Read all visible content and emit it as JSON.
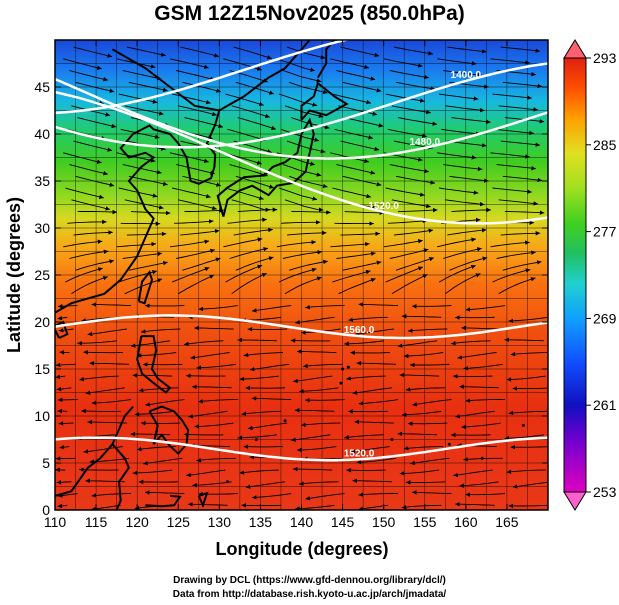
{
  "title": "GSM 12Z15Nov2025 (850.0hPa)",
  "x_axis": {
    "label": "Longitude (degrees)",
    "range": [
      110,
      170
    ],
    "ticks": [
      110,
      115,
      120,
      125,
      130,
      135,
      140,
      145,
      150,
      155,
      160,
      165
    ]
  },
  "y_axis": {
    "label": "Latitude  (degrees)",
    "range": [
      0,
      50
    ],
    "ticks": [
      0,
      5,
      10,
      15,
      20,
      25,
      30,
      35,
      40,
      45
    ]
  },
  "colorbar": {
    "ticks": [
      253,
      261,
      269,
      277,
      285,
      293
    ],
    "range": [
      253,
      293
    ],
    "colors": [
      "#e000c0",
      "#7000d0",
      "#1010c0",
      "#1050ff",
      "#10a0ff",
      "#20d0d0",
      "#20c060",
      "#40d020",
      "#a0e020",
      "#e0e020",
      "#ffa000",
      "#ff5000",
      "#e02010"
    ]
  },
  "contours": [
    {
      "label": "1560.0",
      "lat": 19.5
    },
    {
      "label": "1520.0",
      "lat": 6.5
    },
    {
      "label": "1520.0",
      "lat": 37.5
    },
    {
      "label": "1480.0",
      "lat": 43.5
    },
    {
      "label": "1400.0",
      "lat": 43.8
    },
    {
      "label": "1400.0",
      "lat": 46.5
    }
  ],
  "credits": [
    "Drawing by DCL (https://www.gfd-dennou.org/library/dcl/)",
    "Data from http://database.rish.kyoto-u.ac.jp/arch/jmadata/"
  ]
}
